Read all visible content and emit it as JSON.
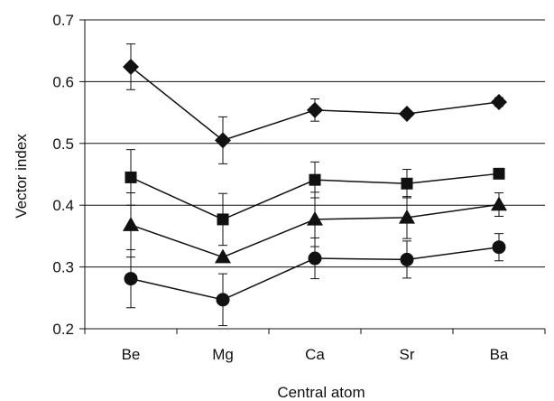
{
  "chart_data": {
    "type": "line",
    "title": "",
    "xlabel": "Central atom",
    "ylabel": "Vector index",
    "categories": [
      "Be",
      "Mg",
      "Ca",
      "Sr",
      "Ba"
    ],
    "ylim": [
      0.2,
      0.7
    ],
    "yticks": [
      0.2,
      0.3,
      0.4,
      0.5,
      0.6,
      0.7
    ],
    "ytick_labels": [
      "0.2",
      "0.3",
      "0.4",
      "0.5",
      "0.6",
      "0.7"
    ],
    "grid": "horizontal",
    "legend": "none",
    "series": [
      {
        "marker": "diamond",
        "values": [
          0.624,
          0.505,
          0.554,
          0.548,
          0.567
        ],
        "error": [
          0.037,
          0.038,
          0.018,
          0.0,
          0.007
        ]
      },
      {
        "marker": "square",
        "values": [
          0.445,
          0.377,
          0.441,
          0.435,
          0.451
        ],
        "error": [
          0.045,
          0.042,
          0.029,
          0.023,
          0.0
        ]
      },
      {
        "marker": "triangle",
        "values": [
          0.368,
          0.316,
          0.377,
          0.38,
          0.401
        ],
        "error": [
          0.052,
          0.0,
          0.044,
          0.034,
          0.019
        ]
      },
      {
        "marker": "circle",
        "values": [
          0.281,
          0.247,
          0.314,
          0.312,
          0.332
        ],
        "error": [
          0.047,
          0.042,
          0.033,
          0.03,
          0.022
        ]
      }
    ],
    "colors": {
      "line": "#111111",
      "marker": "#111111",
      "grid": "#111111",
      "axis": "#111111"
    }
  }
}
